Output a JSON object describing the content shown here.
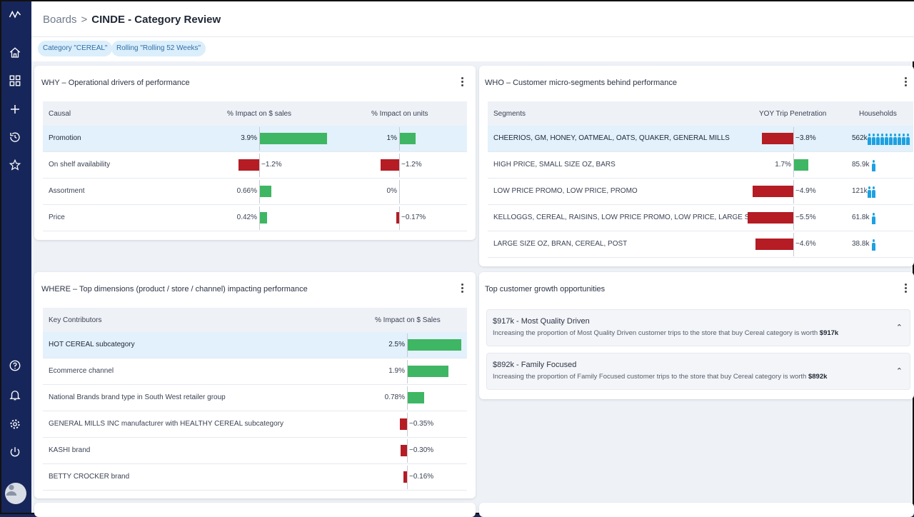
{
  "breadcrumb": {
    "root": "Boards",
    "separator": ">",
    "current": "CINDE - Category Review"
  },
  "filters": [
    {
      "label": "Category \"CEREAL\""
    },
    {
      "label": "Rolling \"Rolling 52 Weeks\""
    }
  ],
  "sidebar": {
    "icons": [
      "logo-icon",
      "home-icon",
      "grid-icon",
      "plus-icon",
      "history-icon",
      "star-icon",
      "help-icon",
      "bell-icon",
      "gear-icon",
      "power-icon",
      "avatar"
    ]
  },
  "why": {
    "title": "WHY – Operational drivers of performance",
    "headers": {
      "causal": "Causal",
      "sales": "% Impact on $ sales",
      "units": "% Impact on units"
    },
    "rows": [
      {
        "label": "Promotion",
        "sales": 3.9,
        "sales_text": "3.9%",
        "units": 1.0,
        "units_text": "1%",
        "highlight": true
      },
      {
        "label": "On shelf availability",
        "sales": -1.2,
        "sales_text": "−1.2%",
        "units": -1.2,
        "units_text": "−1.2%"
      },
      {
        "label": "Assortment",
        "sales": 0.66,
        "sales_text": "0.66%",
        "units": 0,
        "units_text": "0%"
      },
      {
        "label": "Price",
        "sales": 0.42,
        "sales_text": "0.42%",
        "units": -0.17,
        "units_text": "−0.17%"
      }
    ]
  },
  "who": {
    "title": "WHO – Customer micro-segments behind performance",
    "headers": {
      "segments": "Segments",
      "yoy": "YOY Trip Penetration",
      "households": "Households"
    },
    "rows": [
      {
        "label": "CHEERIOS, GM, HONEY, OATMEAL, OATS, QUAKER, GENERAL MILLS",
        "yoy": -3.8,
        "yoy_text": "−3.8%",
        "hh_text": "562k",
        "hh_icons": 10,
        "highlight": true
      },
      {
        "label": "HIGH PRICE, SMALL SIZE OZ, BARS",
        "yoy": 1.7,
        "yoy_text": "1.7%",
        "hh_text": "85.9k",
        "hh_icons": 1
      },
      {
        "label": "LOW PRICE PROMO, LOW PRICE, PROMO",
        "yoy": -4.9,
        "yoy_text": "−4.9%",
        "hh_text": "121k",
        "hh_icons": 2
      },
      {
        "label": "KELLOGGS, CEREAL, RAISINS, LOW PRICE PROMO, LOW PRICE, LARGE SIZ...",
        "yoy": -5.5,
        "yoy_text": "−5.5%",
        "hh_text": "61.8k",
        "hh_icons": 1
      },
      {
        "label": "LARGE SIZE OZ, BRAN, CEREAL, POST",
        "yoy": -4.6,
        "yoy_text": "−4.6%",
        "hh_text": "38.8k",
        "hh_icons": 1
      }
    ]
  },
  "where": {
    "title": "WHERE – Top dimensions (product / store / channel) impacting performance",
    "headers": {
      "contributors": "Key Contributors",
      "impact": "% Impact on $ Sales"
    },
    "rows": [
      {
        "label": "HOT CEREAL subcategory",
        "value": 2.5,
        "text": "2.5%",
        "highlight": true
      },
      {
        "label": "Ecommerce channel",
        "value": 1.9,
        "text": "1.9%"
      },
      {
        "label": "National Brands brand type in South West retailer group",
        "value": 0.78,
        "text": "0.78%"
      },
      {
        "label": "GENERAL MILLS INC manufacturer with HEALTHY CEREAL subcategory",
        "value": -0.35,
        "text": "−0.35%"
      },
      {
        "label": "KASHI brand",
        "value": -0.3,
        "text": "−0.30%"
      },
      {
        "label": "BETTY CROCKER brand",
        "value": -0.16,
        "text": "−0.16%"
      }
    ]
  },
  "opportunities": {
    "title": "Top customer growth opportunities",
    "items": [
      {
        "title": "$917k - Most Quality Driven",
        "desc": "Increasing the proportion of Most Quality Driven customer trips to the store that buy Cereal category is worth ",
        "worth": "$917k"
      },
      {
        "title": "$892k - Family Focused",
        "desc": "Increasing the proportion of Family Focused customer trips to the store that buy Cereal category is worth ",
        "worth": "$892k"
      }
    ]
  },
  "colors": {
    "positive": "#3fb664",
    "negative": "#b51c24",
    "sidebar": "#17265a",
    "highlight": "#e2f1fb",
    "people": "#1da1e0"
  }
}
